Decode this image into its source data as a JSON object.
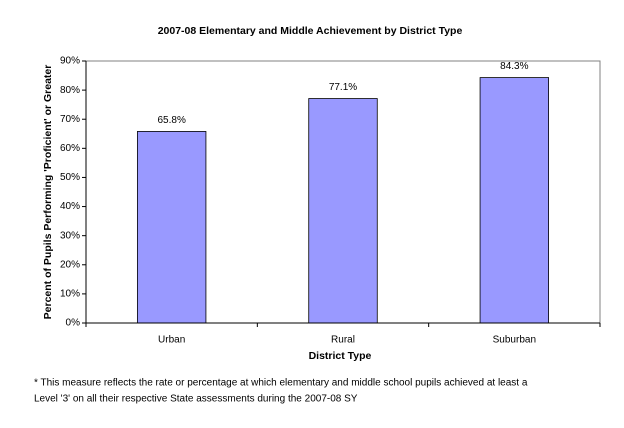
{
  "chart_data": {
    "type": "bar",
    "title": "2007-08 Elementary and Middle Achievement by District Type",
    "x_label": "District Type",
    "y_label": "Percent of Pupils Performing 'Proficient' or Greater",
    "categories": [
      "Urban",
      "Rural",
      "Suburban"
    ],
    "values": [
      65.8,
      77.1,
      84.3
    ],
    "value_labels": [
      "65.8%",
      "77.1%",
      "84.3%"
    ],
    "color": "#9999ff",
    "ylim": [
      0,
      90
    ],
    "yticks": [
      {
        "value": 0,
        "label": "0%"
      },
      {
        "value": 10,
        "label": "10%"
      },
      {
        "value": 20,
        "label": "20%"
      },
      {
        "value": 30,
        "label": "30%"
      },
      {
        "value": 40,
        "label": "40%"
      },
      {
        "value": 50,
        "label": "50%"
      },
      {
        "value": 60,
        "label": "60%"
      },
      {
        "value": 70,
        "label": "70%"
      },
      {
        "value": 80,
        "label": "80%"
      },
      {
        "value": 90,
        "label": "90%"
      }
    ],
    "grid": false,
    "footnote": [
      "* This measure reflects the rate or percentage at which elementary and middle school pupils achieved at least a",
      "Level '3' on all their respective State assessments during the 2007-08 SY"
    ]
  }
}
